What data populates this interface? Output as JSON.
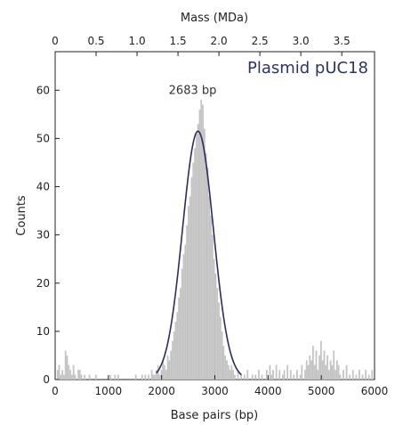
{
  "chart_data": {
    "type": "bar",
    "title": "Plasmid pUC18",
    "xlabel": "Base pairs (bp)",
    "ylabel": "Counts",
    "top_xlabel": "Mass (MDa)",
    "xlim": [
      0,
      6000
    ],
    "ylim": [
      0,
      68
    ],
    "top_xlim": [
      0,
      3.9
    ],
    "x_ticks": [
      0,
      1000,
      2000,
      3000,
      4000,
      5000,
      6000
    ],
    "x_tick_labels": [
      "0",
      "1000",
      "2000",
      "3000",
      "4000",
      "5000",
      "6000"
    ],
    "y_ticks": [
      0,
      10,
      20,
      30,
      40,
      50,
      60
    ],
    "y_tick_labels": [
      "0",
      "10",
      "20",
      "30",
      "40",
      "50",
      "60"
    ],
    "top_ticks": [
      0,
      0.5,
      1.0,
      1.5,
      2.0,
      2.5,
      3.0,
      3.5
    ],
    "top_tick_labels": [
      "0",
      "0.5",
      "1.0",
      "1.5",
      "2.0",
      "2.5",
      "3.0",
      "3.5"
    ],
    "annotation": {
      "text": "2683 bp",
      "x": 2683,
      "y": 60
    },
    "bin_width": 30,
    "series": [
      {
        "type": "histogram",
        "color": "#c4c4c4",
        "bins": [
          [
            30,
            2
          ],
          [
            60,
            3
          ],
          [
            90,
            1
          ],
          [
            120,
            2
          ],
          [
            150,
            1
          ],
          [
            180,
            6
          ],
          [
            210,
            5
          ],
          [
            240,
            3
          ],
          [
            270,
            2
          ],
          [
            300,
            1
          ],
          [
            330,
            3
          ],
          [
            360,
            1
          ],
          [
            420,
            2
          ],
          [
            450,
            2
          ],
          [
            480,
            1
          ],
          [
            540,
            1
          ],
          [
            630,
            1
          ],
          [
            750,
            1
          ],
          [
            1020,
            1
          ],
          [
            1110,
            1
          ],
          [
            1170,
            1
          ],
          [
            1500,
            1
          ],
          [
            1620,
            1
          ],
          [
            1680,
            1
          ],
          [
            1740,
            1
          ],
          [
            1800,
            2
          ],
          [
            1830,
            1
          ],
          [
            1860,
            1
          ],
          [
            1890,
            2
          ],
          [
            1920,
            3
          ],
          [
            1950,
            1
          ],
          [
            1980,
            2
          ],
          [
            2010,
            4
          ],
          [
            2040,
            3
          ],
          [
            2070,
            2
          ],
          [
            2100,
            5
          ],
          [
            2130,
            4
          ],
          [
            2160,
            6
          ],
          [
            2190,
            8
          ],
          [
            2220,
            10
          ],
          [
            2250,
            12
          ],
          [
            2280,
            14
          ],
          [
            2310,
            17
          ],
          [
            2340,
            19
          ],
          [
            2370,
            23
          ],
          [
            2400,
            26
          ],
          [
            2430,
            28
          ],
          [
            2460,
            32
          ],
          [
            2490,
            36
          ],
          [
            2520,
            38
          ],
          [
            2550,
            42
          ],
          [
            2580,
            45
          ],
          [
            2610,
            48
          ],
          [
            2640,
            51
          ],
          [
            2670,
            53
          ],
          [
            2700,
            56
          ],
          [
            2730,
            58
          ],
          [
            2760,
            57
          ],
          [
            2790,
            52
          ],
          [
            2820,
            47
          ],
          [
            2850,
            44
          ],
          [
            2880,
            38
          ],
          [
            2910,
            34
          ],
          [
            2940,
            30
          ],
          [
            2970,
            25
          ],
          [
            3000,
            22
          ],
          [
            3030,
            19
          ],
          [
            3060,
            16
          ],
          [
            3090,
            13
          ],
          [
            3120,
            10
          ],
          [
            3150,
            7
          ],
          [
            3180,
            5
          ],
          [
            3210,
            4
          ],
          [
            3240,
            3
          ],
          [
            3270,
            2
          ],
          [
            3300,
            3
          ],
          [
            3330,
            2
          ],
          [
            3360,
            1
          ],
          [
            3420,
            2
          ],
          [
            3480,
            1
          ],
          [
            3540,
            1
          ],
          [
            3600,
            2
          ],
          [
            3690,
            1
          ],
          [
            3750,
            1
          ],
          [
            3810,
            2
          ],
          [
            3870,
            1
          ],
          [
            3960,
            2
          ],
          [
            4020,
            3
          ],
          [
            4050,
            1
          ],
          [
            4080,
            2
          ],
          [
            4140,
            3
          ],
          [
            4200,
            2
          ],
          [
            4260,
            1
          ],
          [
            4290,
            2
          ],
          [
            4350,
            3
          ],
          [
            4410,
            2
          ],
          [
            4470,
            1
          ],
          [
            4530,
            2
          ],
          [
            4590,
            1
          ],
          [
            4620,
            3
          ],
          [
            4680,
            2
          ],
          [
            4710,
            4
          ],
          [
            4740,
            3
          ],
          [
            4770,
            5
          ],
          [
            4800,
            4
          ],
          [
            4830,
            7
          ],
          [
            4860,
            3
          ],
          [
            4890,
            6
          ],
          [
            4920,
            2
          ],
          [
            4950,
            5
          ],
          [
            4980,
            8
          ],
          [
            5010,
            4
          ],
          [
            5040,
            6
          ],
          [
            5070,
            3
          ],
          [
            5100,
            5
          ],
          [
            5130,
            2
          ],
          [
            5160,
            4
          ],
          [
            5190,
            3
          ],
          [
            5220,
            6
          ],
          [
            5250,
            2
          ],
          [
            5280,
            4
          ],
          [
            5310,
            3
          ],
          [
            5340,
            1
          ],
          [
            5400,
            2
          ],
          [
            5460,
            3
          ],
          [
            5520,
            1
          ],
          [
            5580,
            2
          ],
          [
            5640,
            1
          ],
          [
            5700,
            2
          ],
          [
            5760,
            1
          ],
          [
            5820,
            2
          ],
          [
            5880,
            1
          ],
          [
            5940,
            2
          ]
        ]
      },
      {
        "type": "gaussian-fit",
        "color": "#2b2d5e",
        "mean": 2683,
        "sigma": 290,
        "amplitude": 51.5
      }
    ]
  }
}
